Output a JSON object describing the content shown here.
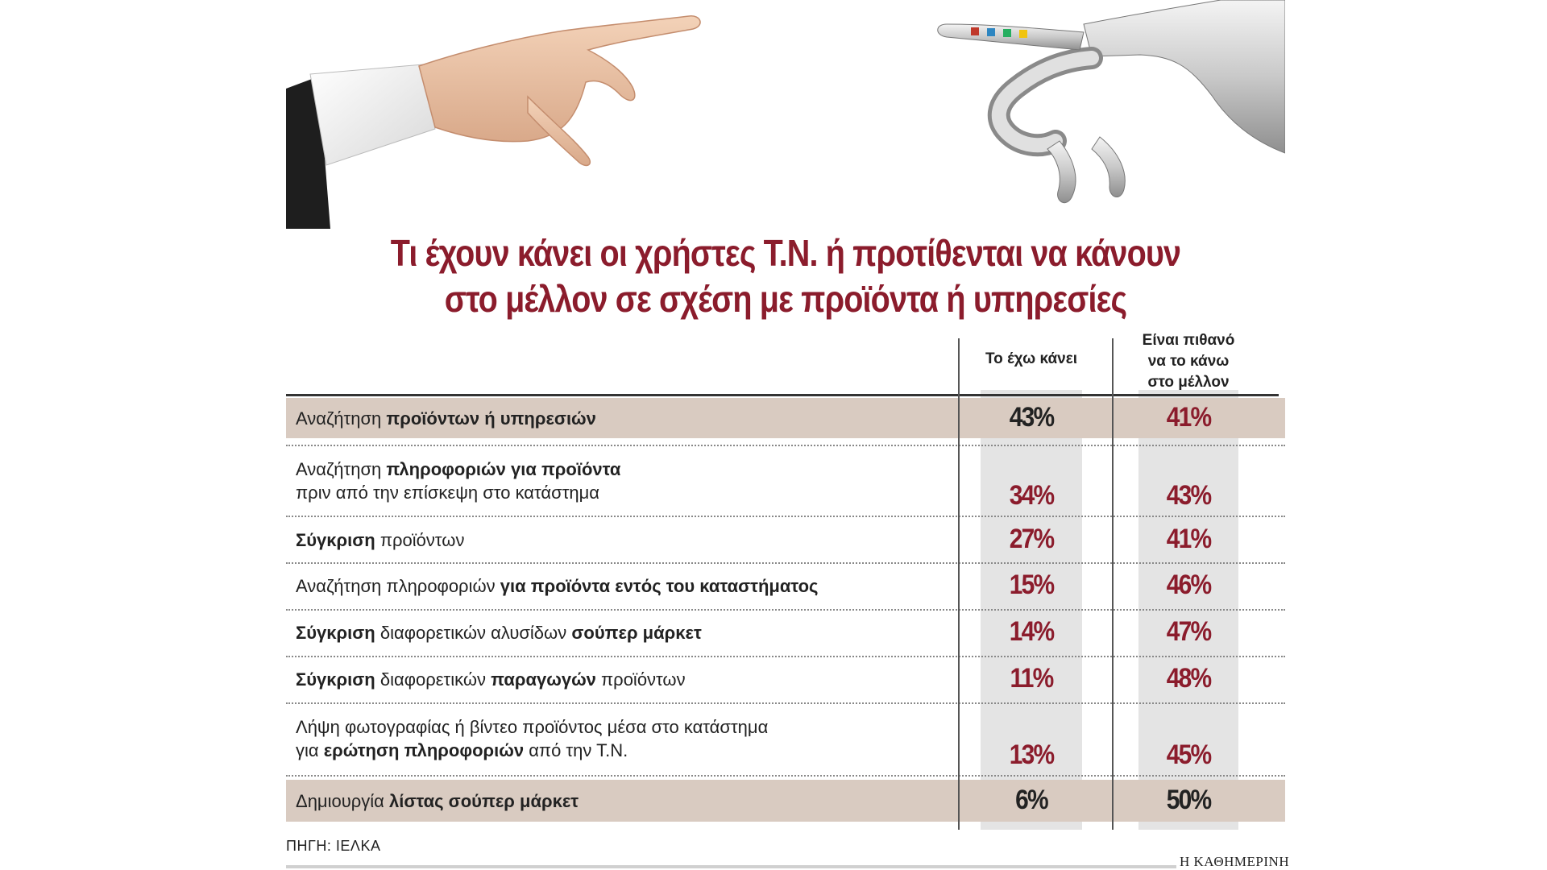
{
  "title_lines": [
    "Τι έχουν κάνει οι χρήστες Τ.Ν. ή προτίθενται να κάνουν",
    "στο μέλλον σε σχέση με προϊόντα ή υπηρεσίες"
  ],
  "columns": {
    "done": "Το έχω κάνει",
    "future": [
      "Είναι πιθανό",
      "να το κάνω",
      "στο μέλλον"
    ]
  },
  "rows": [
    {
      "text": [
        [
          {
            "t": "Αναζήτηση ",
            "b": false
          },
          {
            "t": "προϊόντων ή υπηρεσιών",
            "b": true
          }
        ]
      ],
      "done": "43%",
      "future": "41%",
      "shaded": true
    },
    {
      "text": [
        [
          {
            "t": "Αναζήτηση ",
            "b": false
          },
          {
            "t": "πληροφοριών για προϊόντα",
            "b": true
          }
        ],
        [
          {
            "t": "πριν από την επίσκεψη στο κατάστημα",
            "b": false
          }
        ]
      ],
      "done": "34%",
      "future": "43%",
      "shaded": false
    },
    {
      "text": [
        [
          {
            "t": "Σύγκριση",
            "b": true
          },
          {
            "t": " προϊόντων",
            "b": false
          }
        ]
      ],
      "done": "27%",
      "future": "41%",
      "shaded": false
    },
    {
      "text": [
        [
          {
            "t": "Αναζήτηση πληροφοριών ",
            "b": false
          },
          {
            "t": "για προϊόντα εντός του καταστήματος",
            "b": true
          }
        ]
      ],
      "done": "15%",
      "future": "46%",
      "shaded": false
    },
    {
      "text": [
        [
          {
            "t": "Σύγκριση",
            "b": true
          },
          {
            "t": " διαφορετικών αλυσίδων ",
            "b": false
          },
          {
            "t": "σούπερ μάρκετ",
            "b": true
          }
        ]
      ],
      "done": "14%",
      "future": "47%",
      "shaded": false
    },
    {
      "text": [
        [
          {
            "t": "Σύγκριση",
            "b": true
          },
          {
            "t": " διαφορετικών ",
            "b": false
          },
          {
            "t": "παραγωγών",
            "b": true
          },
          {
            "t": " προϊόντων",
            "b": false
          }
        ]
      ],
      "done": "11%",
      "future": "48%",
      "shaded": false
    },
    {
      "text": [
        [
          {
            "t": "Λήψη φωτογραφίας ή βίντεο προϊόντος μέσα στο κατάστημα",
            "b": false
          }
        ],
        [
          {
            "t": "για ",
            "b": false
          },
          {
            "t": "ερώτηση πληροφοριών",
            "b": true
          },
          {
            "t": " από την Τ.Ν.",
            "b": false
          }
        ]
      ],
      "done": "13%",
      "future": "45%",
      "shaded": false
    },
    {
      "text": [
        [
          {
            "t": "Δημιουργία ",
            "b": false
          },
          {
            "t": "λίστας σούπερ μάρκετ",
            "b": true
          }
        ]
      ],
      "done": "6%",
      "future": "50%",
      "shaded": true
    }
  ],
  "source": "ΠΗΓΗ: ΙΕΛΚΑ",
  "brand": "Η ΚΑΘΗΜΕΡΙΝΗ",
  "colors": {
    "accent": "#8b1c2c",
    "row_shade": "#d9cbc1",
    "col_shade": "#e4e4e4",
    "dark_value": "#222222"
  },
  "icons": {
    "hero": "human-and-robot-hands"
  },
  "chart_data": {
    "type": "table",
    "title": "Τι έχουν κάνει οι χρήστες Τ.Ν. ή προτίθενται να κάνουν στο μέλλον σε σχέση με προϊόντα ή υπηρεσίες",
    "columns": [
      "Το έχω κάνει",
      "Είναι πιθανό να το κάνω στο μέλλον"
    ],
    "categories": [
      "Αναζήτηση προϊόντων ή υπηρεσιών",
      "Αναζήτηση πληροφοριών για προϊόντα πριν από την επίσκεψη στο κατάστημα",
      "Σύγκριση προϊόντων",
      "Αναζήτηση πληροφοριών για προϊόντα εντός του καταστήματος",
      "Σύγκριση διαφορετικών αλυσίδων σούπερ μάρκετ",
      "Σύγκριση διαφορετικών παραγωγών προϊόντων",
      "Λήψη φωτογραφίας ή βίντεο προϊόντος μέσα στο κατάστημα για ερώτηση πληροφοριών από την Τ.Ν.",
      "Δημιουργία λίστας σούπερ μάρκετ"
    ],
    "series": [
      {
        "name": "Το έχω κάνει",
        "values": [
          43,
          34,
          27,
          15,
          14,
          11,
          13,
          6
        ]
      },
      {
        "name": "Είναι πιθανό να το κάνω στο μέλλον",
        "values": [
          41,
          43,
          41,
          46,
          47,
          48,
          45,
          50
        ]
      }
    ],
    "unit": "%"
  }
}
